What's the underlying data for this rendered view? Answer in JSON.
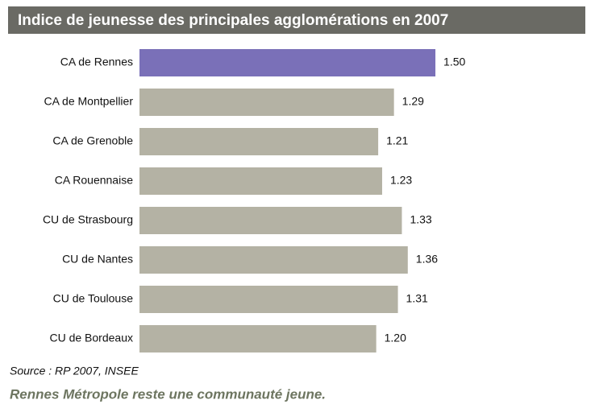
{
  "chart_data": {
    "type": "barh",
    "title": "Indice de jeunesse des principales agglomérations en 2007",
    "categories": [
      "CA de Rennes",
      "CA de Montpellier",
      "CA de Grenoble",
      "CA Rouennaise",
      "CU de Strasbourg",
      "CU de Nantes",
      "CU de Toulouse",
      "CU de Bordeaux"
    ],
    "values": [
      1.5,
      1.29,
      1.21,
      1.23,
      1.33,
      1.36,
      1.31,
      1.2
    ],
    "value_labels": [
      "1.50",
      "1.29",
      "1.21",
      "1.23",
      "1.33",
      "1.36",
      "1.31",
      "1.20"
    ],
    "colors": [
      "#7a70b8",
      "#b4b2a4",
      "#b4b2a4",
      "#b4b2a4",
      "#b4b2a4",
      "#b4b2a4",
      "#b4b2a4",
      "#b4b2a4"
    ],
    "source": "Source : RP 2007, INSEE",
    "caption": "Rennes Métropole reste une communauté jeune."
  }
}
